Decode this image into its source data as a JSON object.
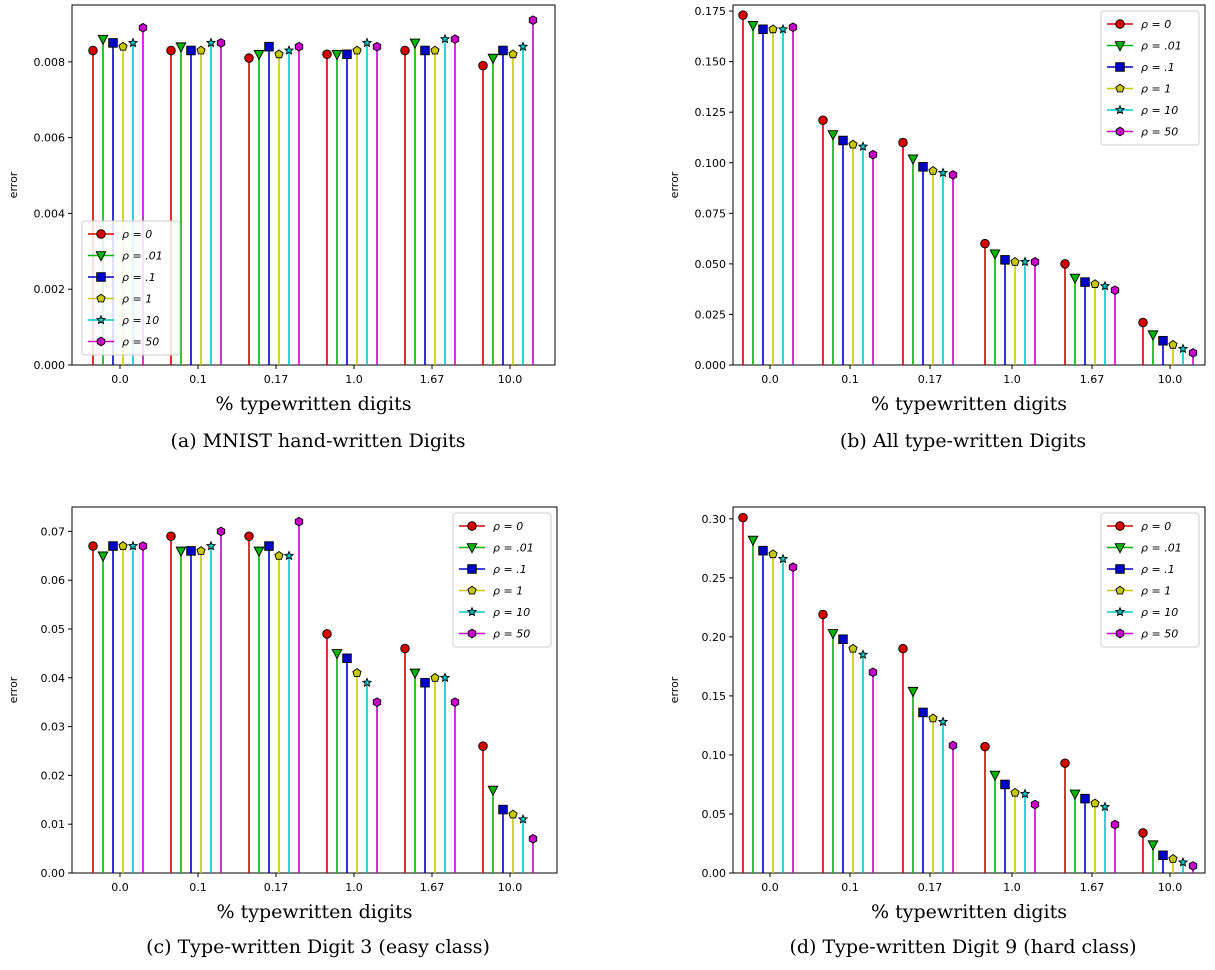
{
  "chart_data": [
    {
      "type": "stem",
      "caption": "(a) MNIST hand-written Digits",
      "xlabel": "% typewritten digits",
      "ylabel": "error",
      "categories": [
        "0.0",
        "0.1",
        "0.17",
        "1.0",
        "1.67",
        "10.0"
      ],
      "ylim": [
        0,
        0.0095
      ],
      "yticks": [
        0.0,
        0.002,
        0.004,
        0.006,
        0.008
      ],
      "ytick_labels": [
        "0.000",
        "0.002",
        "0.004",
        "0.006",
        "0.008"
      ],
      "legend": "lower-left",
      "series": [
        {
          "name": "ρ = 0",
          "values": [
            0.0083,
            0.0083,
            0.0081,
            0.0082,
            0.0083,
            0.0079
          ]
        },
        {
          "name": "ρ = .01",
          "values": [
            0.0086,
            0.0084,
            0.0082,
            0.0082,
            0.0085,
            0.0081
          ]
        },
        {
          "name": "ρ = .1",
          "values": [
            0.0085,
            0.0083,
            0.0084,
            0.0082,
            0.0083,
            0.0083
          ]
        },
        {
          "name": "ρ = 1",
          "values": [
            0.0084,
            0.0083,
            0.0082,
            0.0083,
            0.0083,
            0.0082
          ]
        },
        {
          "name": "ρ = 10",
          "values": [
            0.0085,
            0.0085,
            0.0083,
            0.0085,
            0.0086,
            0.0084
          ]
        },
        {
          "name": "ρ = 50",
          "values": [
            0.0089,
            0.0085,
            0.0084,
            0.0084,
            0.0086,
            0.0091
          ]
        }
      ]
    },
    {
      "type": "stem",
      "caption": "(b) All type-written Digits",
      "xlabel": "% typewritten digits",
      "ylabel": "error",
      "categories": [
        "0.0",
        "0.1",
        "0.17",
        "1.0",
        "1.67",
        "10.0"
      ],
      "ylim": [
        0,
        0.178
      ],
      "yticks": [
        0.0,
        0.025,
        0.05,
        0.075,
        0.1,
        0.125,
        0.15,
        0.175
      ],
      "ytick_labels": [
        "0.000",
        "0.025",
        "0.050",
        "0.075",
        "0.100",
        "0.125",
        "0.150",
        "0.175"
      ],
      "legend": "upper-right",
      "series": [
        {
          "name": "ρ = 0",
          "values": [
            0.173,
            0.121,
            0.11,
            0.06,
            0.05,
            0.021
          ]
        },
        {
          "name": "ρ = .01",
          "values": [
            0.168,
            0.114,
            0.102,
            0.055,
            0.043,
            0.015
          ]
        },
        {
          "name": "ρ = .1",
          "values": [
            0.166,
            0.111,
            0.098,
            0.052,
            0.041,
            0.012
          ]
        },
        {
          "name": "ρ = 1",
          "values": [
            0.166,
            0.109,
            0.096,
            0.051,
            0.04,
            0.01
          ]
        },
        {
          "name": "ρ = 10",
          "values": [
            0.166,
            0.108,
            0.095,
            0.051,
            0.039,
            0.008
          ]
        },
        {
          "name": "ρ = 50",
          "values": [
            0.167,
            0.104,
            0.094,
            0.051,
            0.037,
            0.006
          ]
        }
      ]
    },
    {
      "type": "stem",
      "caption": "(c) Type-written Digit 3 (easy class)",
      "xlabel": "% typewritten digits",
      "ylabel": "error",
      "categories": [
        "0.0",
        "0.1",
        "0.17",
        "1.0",
        "1.67",
        "10.0"
      ],
      "ylim": [
        0,
        0.075
      ],
      "yticks": [
        0.0,
        0.01,
        0.02,
        0.03,
        0.04,
        0.05,
        0.06,
        0.07
      ],
      "ytick_labels": [
        "0.00",
        "0.01",
        "0.02",
        "0.03",
        "0.04",
        "0.05",
        "0.06",
        "0.07"
      ],
      "legend": "upper-right",
      "series": [
        {
          "name": "ρ = 0",
          "values": [
            0.067,
            0.069,
            0.069,
            0.049,
            0.046,
            0.026
          ]
        },
        {
          "name": "ρ = .01",
          "values": [
            0.065,
            0.066,
            0.066,
            0.045,
            0.041,
            0.017
          ]
        },
        {
          "name": "ρ = .1",
          "values": [
            0.067,
            0.066,
            0.067,
            0.044,
            0.039,
            0.013
          ]
        },
        {
          "name": "ρ = 1",
          "values": [
            0.067,
            0.066,
            0.065,
            0.041,
            0.04,
            0.012
          ]
        },
        {
          "name": "ρ = 10",
          "values": [
            0.067,
            0.067,
            0.065,
            0.039,
            0.04,
            0.011
          ]
        },
        {
          "name": "ρ = 50",
          "values": [
            0.067,
            0.07,
            0.072,
            0.035,
            0.035,
            0.007
          ]
        }
      ]
    },
    {
      "type": "stem",
      "caption": "(d) Type-written Digit 9 (hard class)",
      "xlabel": "% typewritten digits",
      "ylabel": "error",
      "categories": [
        "0.0",
        "0.1",
        "0.17",
        "1.0",
        "1.67",
        "10.0"
      ],
      "ylim": [
        0,
        0.31
      ],
      "yticks": [
        0.0,
        0.05,
        0.1,
        0.15,
        0.2,
        0.25,
        0.3
      ],
      "ytick_labels": [
        "0.00",
        "0.05",
        "0.10",
        "0.15",
        "0.20",
        "0.25",
        "0.30"
      ],
      "legend": "upper-right",
      "series": [
        {
          "name": "ρ = 0",
          "values": [
            0.301,
            0.219,
            0.19,
            0.107,
            0.093,
            0.034
          ]
        },
        {
          "name": "ρ = .01",
          "values": [
            0.282,
            0.203,
            0.154,
            0.083,
            0.067,
            0.024
          ]
        },
        {
          "name": "ρ = .1",
          "values": [
            0.273,
            0.198,
            0.136,
            0.075,
            0.063,
            0.015
          ]
        },
        {
          "name": "ρ = 1",
          "values": [
            0.27,
            0.19,
            0.131,
            0.068,
            0.059,
            0.012
          ]
        },
        {
          "name": "ρ = 10",
          "values": [
            0.266,
            0.185,
            0.128,
            0.067,
            0.056,
            0.009
          ]
        },
        {
          "name": "ρ = 50",
          "values": [
            0.259,
            0.17,
            0.108,
            0.058,
            0.041,
            0.006
          ]
        }
      ]
    }
  ],
  "series_style": [
    {
      "color": "#d40000",
      "marker": "circle"
    },
    {
      "color": "#00b400",
      "marker": "triangle-down"
    },
    {
      "color": "#0000c8",
      "marker": "square"
    },
    {
      "color": "#c8c800",
      "marker": "pentagon"
    },
    {
      "color": "#00c8c8",
      "marker": "star"
    },
    {
      "color": "#c800c8",
      "marker": "hexagon"
    }
  ]
}
